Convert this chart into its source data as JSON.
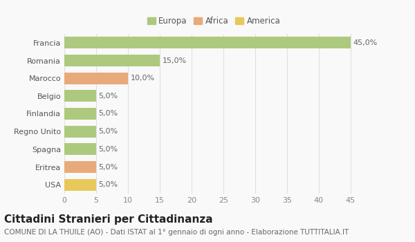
{
  "categories": [
    "Francia",
    "Romania",
    "Marocco",
    "Belgio",
    "Finlandia",
    "Regno Unito",
    "Spagna",
    "Eritrea",
    "USA"
  ],
  "values": [
    45.0,
    15.0,
    10.0,
    5.0,
    5.0,
    5.0,
    5.0,
    5.0,
    5.0
  ],
  "labels": [
    "45,0%",
    "15,0%",
    "10,0%",
    "5,0%",
    "5,0%",
    "5,0%",
    "5,0%",
    "5,0%",
    "5,0%"
  ],
  "colors": [
    "#adc97e",
    "#adc97e",
    "#e8aa7a",
    "#adc97e",
    "#adc97e",
    "#adc97e",
    "#adc97e",
    "#e8aa7a",
    "#e8c85a"
  ],
  "legend": [
    {
      "label": "Europa",
      "color": "#adc97e"
    },
    {
      "label": "Africa",
      "color": "#e8aa7a"
    },
    {
      "label": "America",
      "color": "#e8c85a"
    }
  ],
  "xlim": [
    0,
    47
  ],
  "xticks": [
    0,
    5,
    10,
    15,
    20,
    25,
    30,
    35,
    40,
    45
  ],
  "title": "Cittadini Stranieri per Cittadinanza",
  "subtitle": "COMUNE DI LA THUILE (AO) - Dati ISTAT al 1° gennaio di ogni anno - Elaborazione TUTTITALIA.IT",
  "background_color": "#f9f9f9",
  "grid_color": "#e0e0e0",
  "bar_height": 0.65,
  "title_fontsize": 11,
  "subtitle_fontsize": 7.5,
  "tick_fontsize": 8,
  "label_fontsize": 8,
  "legend_fontsize": 8.5
}
